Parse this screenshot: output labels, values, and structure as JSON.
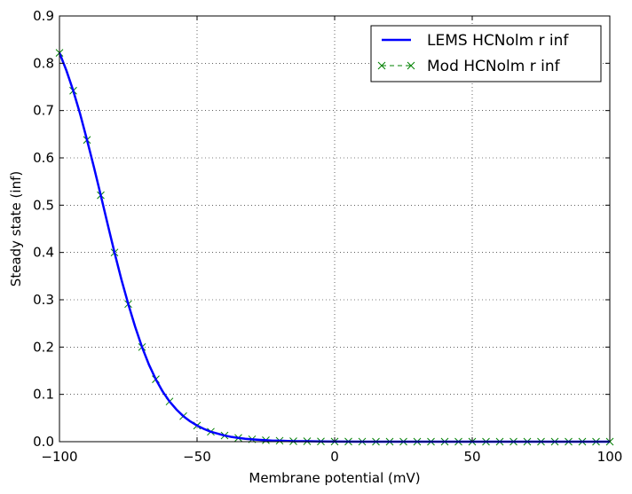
{
  "chart_data": {
    "type": "line",
    "title": "",
    "xlabel": "Membrane potential (mV)",
    "ylabel": "Steady state (inf)",
    "xlim": [
      -100,
      100
    ],
    "ylim": [
      0,
      0.9
    ],
    "x_ticks": [
      -100,
      -50,
      0,
      50,
      100
    ],
    "x_tick_labels": [
      "−100",
      "−50",
      "0",
      "50",
      "100"
    ],
    "y_ticks": [
      0.0,
      0.1,
      0.2,
      0.3,
      0.4,
      0.5,
      0.6,
      0.7,
      0.8,
      0.9
    ],
    "y_tick_labels": [
      "0.0",
      "0.1",
      "0.2",
      "0.3",
      "0.4",
      "0.5",
      "0.6",
      "0.7",
      "0.8",
      "0.9"
    ],
    "grid": true,
    "legend_position": "top-right",
    "series": [
      {
        "name": "LEMS HCNolm r inf",
        "style": "solid",
        "marker": "none",
        "color": "#0000ff",
        "x": [
          -100,
          -97.5,
          -95,
          -92.5,
          -90,
          -87.5,
          -85,
          -82.5,
          -80,
          -77.5,
          -75,
          -72.5,
          -70,
          -67.5,
          -65,
          -62.5,
          -60,
          -57.5,
          -55,
          -52.5,
          -50,
          -47.5,
          -45,
          -42.5,
          -40,
          -37.5,
          -35,
          -32.5,
          -30,
          -27.5,
          -25,
          -22.5,
          -20,
          -15,
          -10,
          -5,
          0,
          10,
          20,
          30,
          40,
          50,
          60,
          70,
          80,
          90,
          100
        ],
        "y": [
          0.822,
          0.785,
          0.742,
          0.693,
          0.638,
          0.581,
          0.521,
          0.46,
          0.4,
          0.343,
          0.291,
          0.243,
          0.2,
          0.163,
          0.132,
          0.106,
          0.085,
          0.068,
          0.054,
          0.043,
          0.034,
          0.027,
          0.021,
          0.017,
          0.013,
          0.01,
          0.008,
          0.006,
          0.005,
          0.004,
          0.003,
          0.002,
          0.002,
          0.001,
          0.001,
          0.0005,
          0.0003,
          0.0001,
          0.0,
          0.0,
          0.0,
          0.0,
          0.0,
          0.0,
          0.0,
          0.0,
          0.0
        ]
      },
      {
        "name": "Mod HCNolm r inf",
        "style": "dashed",
        "marker": "x",
        "color": "#008000",
        "x": [
          -100,
          -95,
          -90,
          -85,
          -80,
          -75,
          -70,
          -65,
          -60,
          -55,
          -50,
          -45,
          -40,
          -35,
          -30,
          -25,
          -20,
          -15,
          -10,
          -5,
          0,
          5,
          10,
          15,
          20,
          25,
          30,
          35,
          40,
          45,
          50,
          55,
          60,
          65,
          70,
          75,
          80,
          85,
          90,
          95,
          100
        ],
        "y": [
          0.822,
          0.742,
          0.638,
          0.521,
          0.4,
          0.291,
          0.2,
          0.132,
          0.085,
          0.054,
          0.034,
          0.021,
          0.013,
          0.008,
          0.005,
          0.003,
          0.002,
          0.001,
          0.001,
          0.0005,
          0.0003,
          0.0002,
          0.0001,
          0.0,
          0.0,
          0.0,
          0.0,
          0.0,
          0.0,
          0.0,
          0.0,
          0.0,
          0.0,
          0.0,
          0.0,
          0.0,
          0.0,
          0.0,
          0.0,
          0.0,
          0.0
        ]
      }
    ]
  }
}
